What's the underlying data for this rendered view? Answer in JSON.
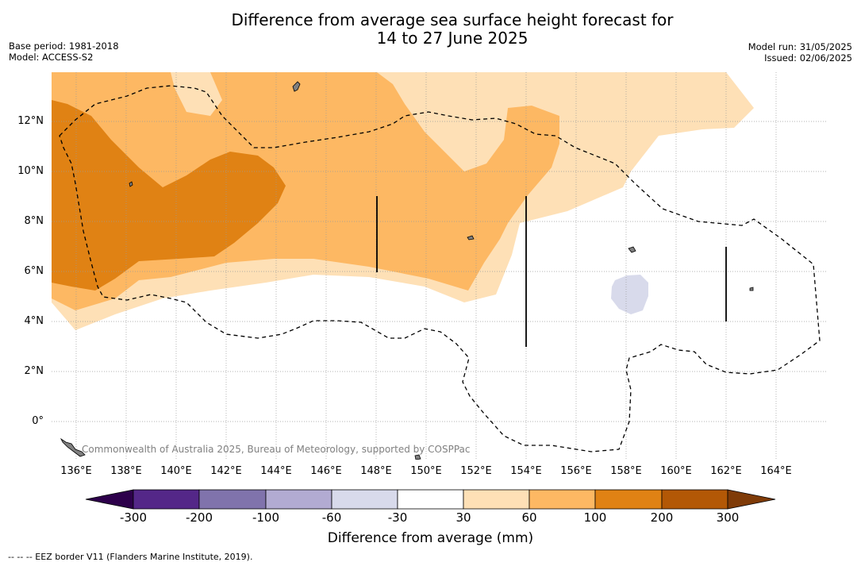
{
  "header": {
    "title_line1": "Difference from average sea surface height forecast for",
    "title_line2": "14 to 27 June 2025",
    "base_period": "Base period: 1981-2018",
    "model": "Model: ACCESS-S2",
    "model_run": "Model run: 31/05/2025",
    "issued": "Issued: 02/06/2025"
  },
  "map": {
    "lat_labels": [
      "12°N",
      "10°N",
      "8°N",
      "6°N",
      "4°N",
      "2°N",
      "0°"
    ],
    "lon_labels": [
      "136°E",
      "138°E",
      "140°E",
      "142°E",
      "144°E",
      "146°E",
      "148°E",
      "150°E",
      "152°E",
      "154°E",
      "156°E",
      "158°E",
      "160°E",
      "162°E",
      "164°E"
    ],
    "credit": "Commonwealth of Australia 2025, Bureau of Meteorology, supported by COSPPac",
    "ocean_color": "#ffffff",
    "land_color": "#808080"
  },
  "colorbar": {
    "tick_labels": [
      "-300",
      "-200",
      "-100",
      "-60",
      "-30",
      "30",
      "60",
      "100",
      "200",
      "300"
    ],
    "colors": [
      "#2d004b",
      "#542788",
      "#8073ac",
      "#b2abd2",
      "#d8daeb",
      "#ffffff",
      "#fee0b6",
      "#fdb863",
      "#e08214",
      "#b35806",
      "#7f3b08"
    ],
    "label": "Difference from average (mm)"
  },
  "footnote": "--  --  -- EEZ border V11 (Flanders Marine Institute, 2019)."
}
